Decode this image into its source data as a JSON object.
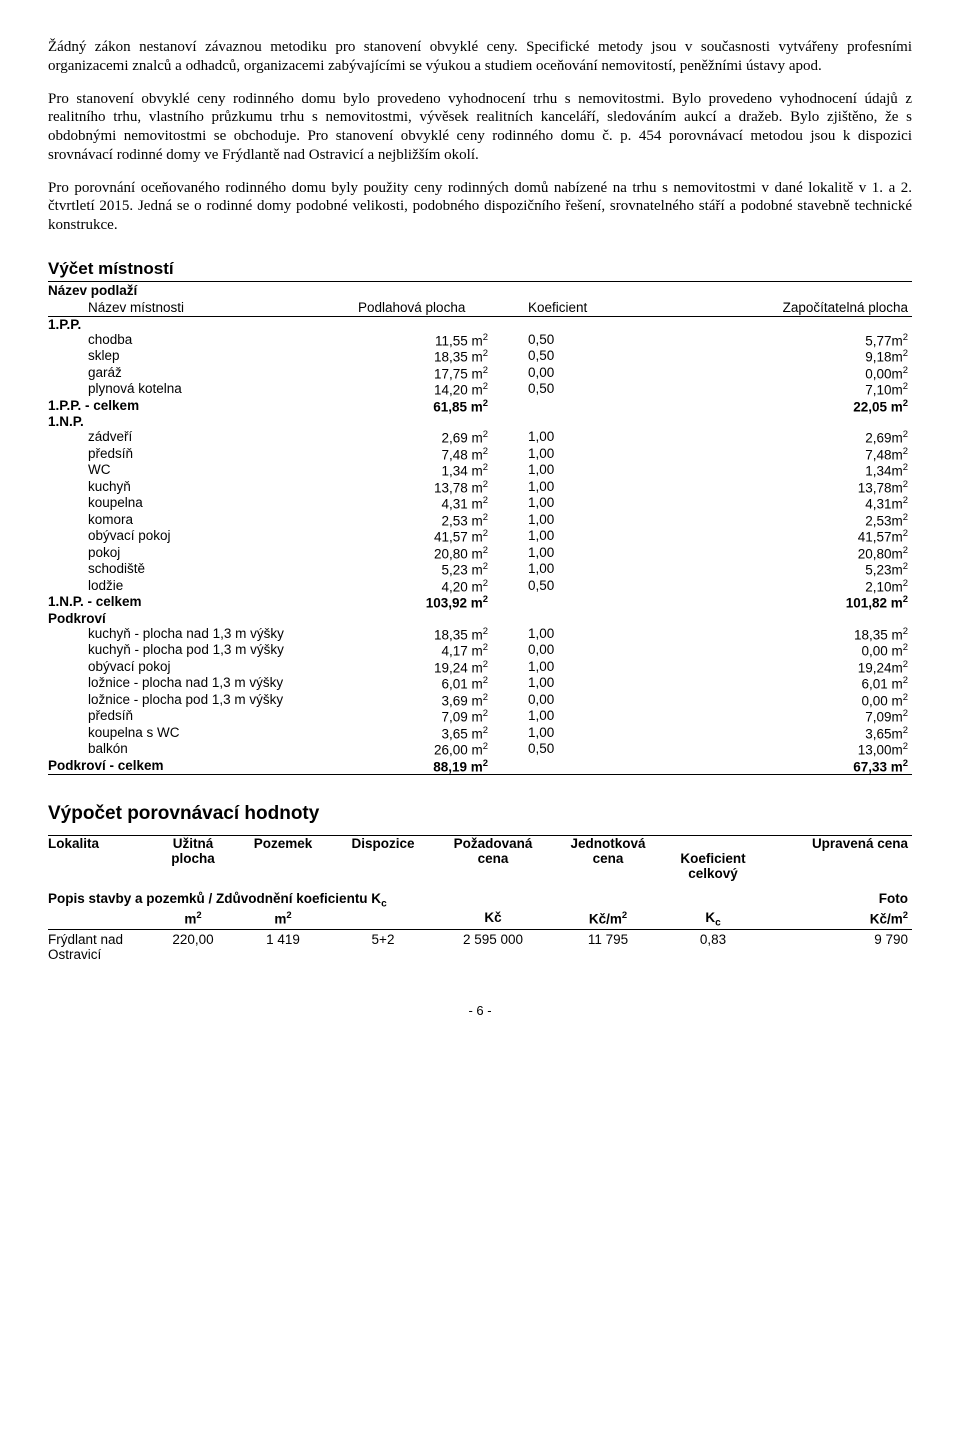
{
  "paragraphs": {
    "p1": "Žádný zákon nestanoví závaznou metodiku pro stanovení obvyklé ceny. Specifické metody jsou v současnosti vytvářeny profesními organizacemi znalců a odhadců, organizacemi zabývajícími se výukou a studiem oceňování nemovitostí, peněžními ústavy apod.",
    "p2": "Pro stanovení obvyklé ceny rodinného domu bylo provedeno vyhodnocení trhu s nemovitostmi. Bylo provedeno vyhodnocení údajů z realitního trhu, vlastního průzkumu trhu s nemovitostmi, vývěsek realitních kanceláří, sledováním aukcí a dražeb. Bylo zjištěno, že s obdobnými nemovitostmi se obchoduje. Pro stanovení obvyklé ceny rodinného domu č. p. 454 porovnávací metodou jsou k dispozici srovnávací rodinné domy ve Frýdlantě nad Ostravicí a nejbližším okolí.",
    "p3": "Pro porovnání oceňovaného rodinného domu byly použity ceny rodinných domů nabízené na trhu s nemovitostmi v dané lokalitě v 1. a 2. čtvrtletí 2015. Jedná se o rodinné domy podobné velikosti, podobného dispozičního řešení, srovnatelného stáří a podobné stavebně technické konstrukce."
  },
  "roomsTable": {
    "title": "Výčet místností",
    "headerFloor": "Název podlaží",
    "headerName": "Název místnosti",
    "headerArea": "Podlahová plocha",
    "headerCoef": "Koeficient",
    "headerCalc": "Započítatelná plocha",
    "floors": [
      {
        "name": "1.P.P.",
        "rows": [
          {
            "name": "chodba",
            "area": "11,55 m",
            "coef": "0,50",
            "calc": "5,77m"
          },
          {
            "name": "sklep",
            "area": "18,35 m",
            "coef": "0,50",
            "calc": "9,18m"
          },
          {
            "name": "garáž",
            "area": "17,75 m",
            "coef": "0,00",
            "calc": "0,00m"
          },
          {
            "name": "plynová kotelna",
            "area": "14,20 m",
            "coef": "0,50",
            "calc": "7,10m"
          }
        ],
        "totalName": "1.P.P. - celkem",
        "totalArea": "61,85 m",
        "totalCalc": "22,05 m"
      },
      {
        "name": "1.N.P.",
        "rows": [
          {
            "name": "zádveří",
            "area": "2,69 m",
            "coef": "1,00",
            "calc": "2,69m"
          },
          {
            "name": "předsíň",
            "area": "7,48 m",
            "coef": "1,00",
            "calc": "7,48m"
          },
          {
            "name": "WC",
            "area": "1,34 m",
            "coef": "1,00",
            "calc": "1,34m"
          },
          {
            "name": "kuchyň",
            "area": "13,78 m",
            "coef": "1,00",
            "calc": "13,78m"
          },
          {
            "name": "koupelna",
            "area": "4,31 m",
            "coef": "1,00",
            "calc": "4,31m"
          },
          {
            "name": "komora",
            "area": "2,53 m",
            "coef": "1,00",
            "calc": "2,53m"
          },
          {
            "name": "obývací pokoj",
            "area": "41,57 m",
            "coef": "1,00",
            "calc": "41,57m"
          },
          {
            "name": "pokoj",
            "area": "20,80 m",
            "coef": "1,00",
            "calc": "20,80m"
          },
          {
            "name": "schodiště",
            "area": "5,23 m",
            "coef": "1,00",
            "calc": "5,23m"
          },
          {
            "name": "lodžie",
            "area": "4,20 m",
            "coef": "0,50",
            "calc": "2,10m"
          }
        ],
        "totalName": "1.N.P. - celkem",
        "totalArea": "103,92 m",
        "totalCalc": "101,82 m"
      },
      {
        "name": "Podkroví",
        "rows": [
          {
            "name": "kuchyň - plocha nad 1,3 m výšky",
            "area": "18,35 m",
            "coef": "1,00",
            "calc": "18,35 m"
          },
          {
            "name": "kuchyň - plocha pod 1,3 m výšky",
            "area": "4,17 m",
            "coef": "0,00",
            "calc": "0,00 m"
          },
          {
            "name": "obývací pokoj",
            "area": "19,24 m",
            "coef": "1,00",
            "calc": "19,24m"
          },
          {
            "name": "ložnice - plocha nad 1,3 m výšky",
            "area": "6,01 m",
            "coef": "1,00",
            "calc": "6,01 m"
          },
          {
            "name": "ložnice - plocha pod 1,3 m výšky",
            "area": "3,69 m",
            "coef": "0,00",
            "calc": "0,00 m"
          },
          {
            "name": "předsíň",
            "area": "7,09 m",
            "coef": "1,00",
            "calc": "7,09m"
          },
          {
            "name": "koupelna s WC",
            "area": "3,65 m",
            "coef": "1,00",
            "calc": "3,65m"
          },
          {
            "name": "balkón",
            "area": "26,00 m",
            "coef": "0,50",
            "calc": "13,00m"
          }
        ],
        "totalName": "Podkroví - celkem",
        "totalArea": "88,19 m",
        "totalCalc": "67,33 m"
      }
    ]
  },
  "cmp": {
    "title": "Výpočet porovnávací hodnoty",
    "hdr": {
      "c1a": "Lokalita",
      "c2a": "Užitná",
      "c2b": "plocha",
      "c3a": "Pozemek",
      "c4a": "Dispozice",
      "c5a": "Požadovaná",
      "c5b": "cena",
      "c6a": "Jednotková",
      "c6b": "cena",
      "c7a": "",
      "c7b": "Koeficient",
      "c7c": "celkový",
      "c8a": "Upravená cena"
    },
    "sub": {
      "left": "Popis stavby a pozemků / Zdůvodnění koeficientu K",
      "c2": "m",
      "c3": "m",
      "c5": "Kč",
      "c6": "Kč/m",
      "c7": "K",
      "c8a": "Foto",
      "c8b": "Kč/m"
    },
    "row": {
      "c1": "Frýdlant nad Ostravicí",
      "c2": "220,00",
      "c3": "1 419",
      "c4": "5+2",
      "c5": "2 595 000",
      "c6": "11 795",
      "c7": "0,83",
      "c8": "9 790"
    }
  },
  "pageNumber": "- 6 -"
}
